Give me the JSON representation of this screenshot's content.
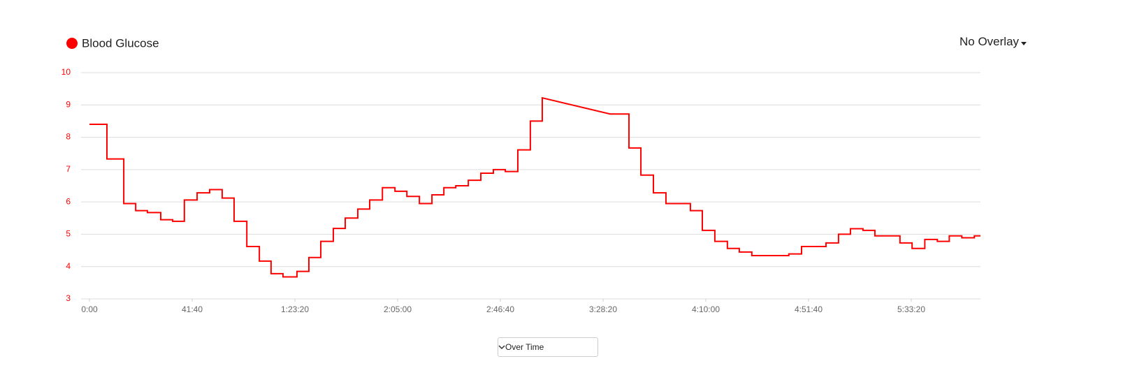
{
  "chart_data": {
    "type": "line",
    "line_style": "step-after",
    "series": [
      {
        "name": "Blood Glucose",
        "color": "#ff0000",
        "x": [
          0,
          425,
          835,
          1125,
          1410,
          1735,
          2025,
          2310,
          2620,
          2925,
          3230,
          3520,
          3830,
          4135,
          4420,
          4710,
          5050,
          5340,
          5630,
          5935,
          6225,
          6530,
          6820,
          7130,
          7435,
          7725,
          8030,
          8335,
          8625,
          8915,
          9220,
          9525,
          9830,
          10120,
          10425,
          10730,
          11020,
          12670,
          13130,
          13420,
          13725,
          14030,
          14625,
          14915,
          15220,
          15525,
          15815,
          16120,
          17020,
          17330,
          17925,
          18230,
          18520,
          18825,
          19115,
          19725,
          20020,
          20330,
          20635,
          20925,
          21230,
          21535
        ],
        "values": [
          8.4,
          7.33,
          5.95,
          5.73,
          5.67,
          5.45,
          5.4,
          6.06,
          6.28,
          6.38,
          6.12,
          5.4,
          4.62,
          4.17,
          3.78,
          3.68,
          3.85,
          4.28,
          4.78,
          5.18,
          5.5,
          5.78,
          6.06,
          6.44,
          6.33,
          6.17,
          5.95,
          6.22,
          6.44,
          6.5,
          6.67,
          6.89,
          7.0,
          6.94,
          7.61,
          8.5,
          9.22,
          8.72,
          7.67,
          6.83,
          6.28,
          5.95,
          5.73,
          5.12,
          4.78,
          4.56,
          4.45,
          4.34,
          4.39,
          4.62,
          4.73,
          5.0,
          5.17,
          5.12,
          4.95,
          4.73,
          4.56,
          4.84,
          4.78,
          4.95,
          4.89,
          4.95
        ]
      }
    ],
    "xlim": [
      0,
      21684
    ],
    "xticks": [
      {
        "value": 0,
        "label": "0:00"
      },
      {
        "value": 2500,
        "label": "41:40"
      },
      {
        "value": 5000,
        "label": "1:23:20"
      },
      {
        "value": 7500,
        "label": "2:05:00"
      },
      {
        "value": 10000,
        "label": "2:46:40"
      },
      {
        "value": 12500,
        "label": "3:28:20"
      },
      {
        "value": 15000,
        "label": "4:10:00"
      },
      {
        "value": 17500,
        "label": "4:51:40"
      },
      {
        "value": 20000,
        "label": "5:33:20"
      }
    ],
    "ylim": [
      3,
      10
    ],
    "yticks": [
      3,
      4,
      5,
      6,
      7,
      8,
      9,
      10
    ],
    "grid": true,
    "axis_color": "#ff0000"
  },
  "controls": {
    "overlay": "No Overlay",
    "mode": "Over Time"
  }
}
